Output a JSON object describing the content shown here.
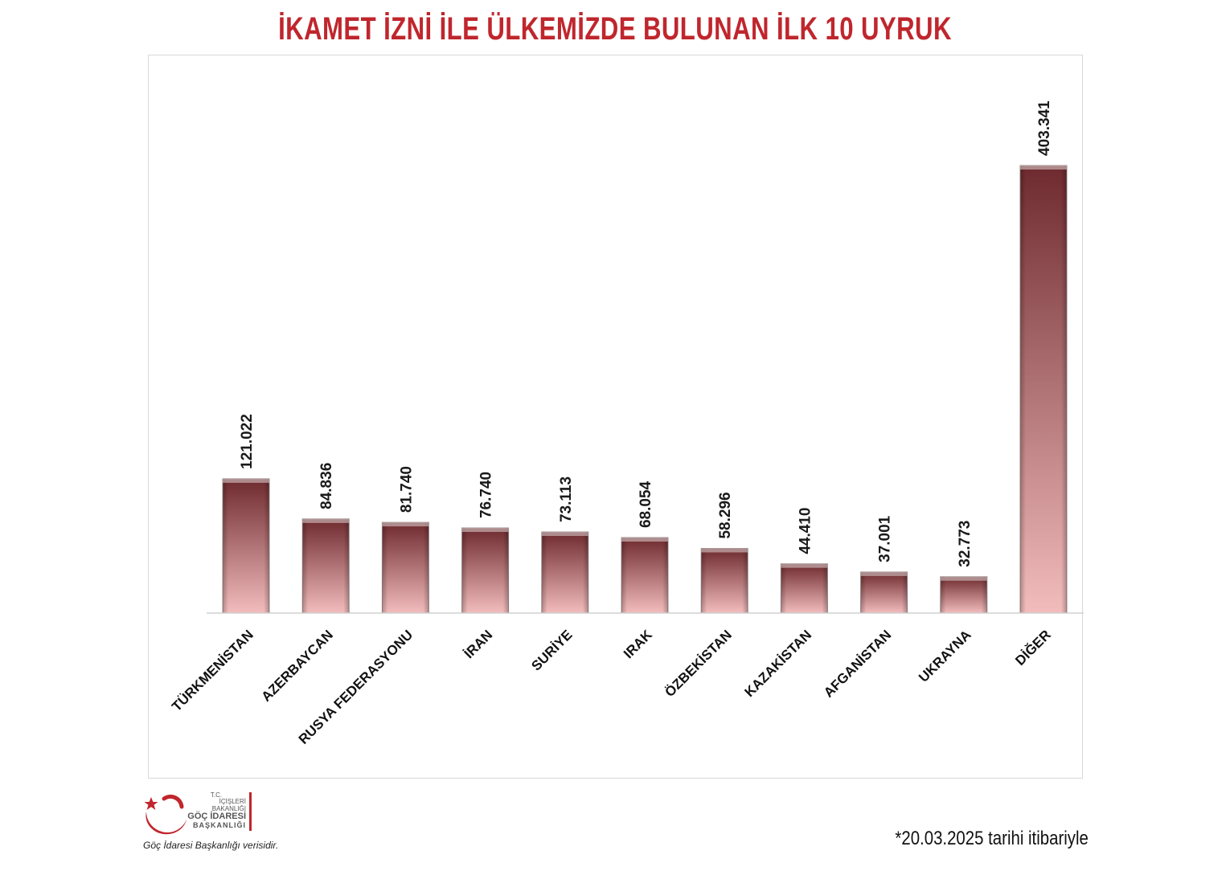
{
  "title": "İKAMET İZNİ İLE ÜLKEMİZDE BULUNAN İLK 10 UYRUK",
  "chart_data": {
    "type": "bar",
    "title": "İKAMET İZNİ İLE ÜLKEMİZDE BULUNAN İLK 10 UYRUK",
    "categories": [
      "TÜRKMENİSTAN",
      "AZERBAYCAN",
      "RUSYA FEDERASYONU",
      "İRAN",
      "SURİYE",
      "IRAK",
      "ÖZBEKİSTAN",
      "KAZAKİSTAN",
      "AFGANİSTAN",
      "UKRAYNA",
      "DİĞER"
    ],
    "values": [
      121022,
      84836,
      81740,
      76740,
      73113,
      68054,
      58296,
      44410,
      37001,
      32773,
      403341
    ],
    "value_labels": [
      "121.022",
      "84.836",
      "81.740",
      "76.740",
      "73.113",
      "68.054",
      "58.296",
      "44.410",
      "37.001",
      "32.773",
      "403.341"
    ],
    "xlabel": "",
    "ylabel": "",
    "ylim": [
      0,
      403341
    ],
    "grid": false,
    "legend": "none",
    "bar_color_top": "#6e2a2e",
    "bar_color_bottom": "#f2bcbd"
  },
  "logo": {
    "line1": "T.C.",
    "line2": "İÇİŞLERİ BAKANLIĞI",
    "line3": "GÖÇ İDARESİ",
    "line4": "BAŞKANLIĞI",
    "icon": "crescent-star-icon",
    "accent_color": "#c0262d"
  },
  "source_note": "Göç İdaresi Başkanlığı verisidir.",
  "date_note": "*20.03.2025 tarihi itibariyle"
}
